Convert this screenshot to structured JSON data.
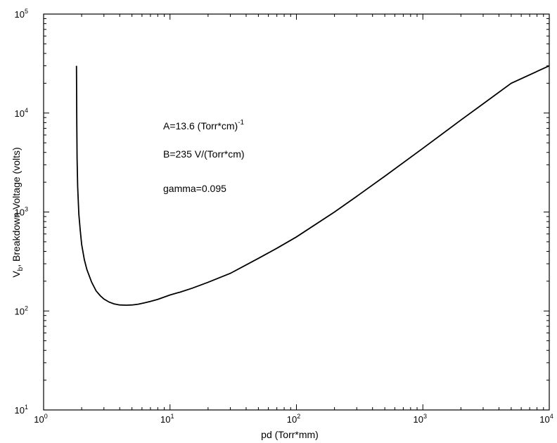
{
  "chart_data": {
    "type": "line",
    "xlabel": "pd (Torr*mm)",
    "ylabel": {
      "prefix": "V",
      "subscript": "b",
      "suffix": ", Breakdown Voltage (volts)"
    },
    "xscale": "log",
    "yscale": "log",
    "xlim": [
      1,
      10000
    ],
    "ylim": [
      10,
      100000
    ],
    "grid": false,
    "x_ticks": [
      {
        "base": "10",
        "exp": "0"
      },
      {
        "base": "10",
        "exp": "1"
      },
      {
        "base": "10",
        "exp": "2"
      },
      {
        "base": "10",
        "exp": "3"
      },
      {
        "base": "10",
        "exp": "4"
      }
    ],
    "y_ticks": [
      {
        "base": "10",
        "exp": "1"
      },
      {
        "base": "10",
        "exp": "2"
      },
      {
        "base": "10",
        "exp": "3"
      },
      {
        "base": "10",
        "exp": "4"
      },
      {
        "base": "10",
        "exp": "5"
      }
    ],
    "annotations": [
      {
        "text": "A=13.6 (Torr*cm)",
        "sup": "-1"
      },
      {
        "text": "B=235 V/(Torr*cm)",
        "sup": ""
      },
      {
        "text": "gamma=0.095",
        "sup": ""
      }
    ],
    "series": [
      {
        "x": [
          1.82,
          1.83,
          1.84,
          1.86,
          1.9,
          1.95,
          2.0,
          2.1,
          2.2,
          2.4,
          2.6,
          2.8,
          3.0,
          3.3,
          3.6,
          4.0,
          4.5,
          5.0,
          5.6,
          6.3,
          7.0,
          8.0,
          10,
          12,
          15,
          20,
          30,
          50,
          70,
          100,
          200,
          300,
          500,
          1000,
          2000,
          3000,
          5000,
          10000
        ],
        "y": [
          30000,
          8000,
          3500,
          1800,
          950,
          650,
          470,
          330,
          262,
          195,
          160,
          143,
          132,
          123,
          118,
          115,
          114.5,
          115,
          117,
          121,
          125,
          131,
          145,
          155,
          170,
          195,
          240,
          340,
          430,
          560,
          1000,
          1440,
          2300,
          4400,
          8500,
          12400,
          20000,
          30000
        ]
      }
    ]
  }
}
